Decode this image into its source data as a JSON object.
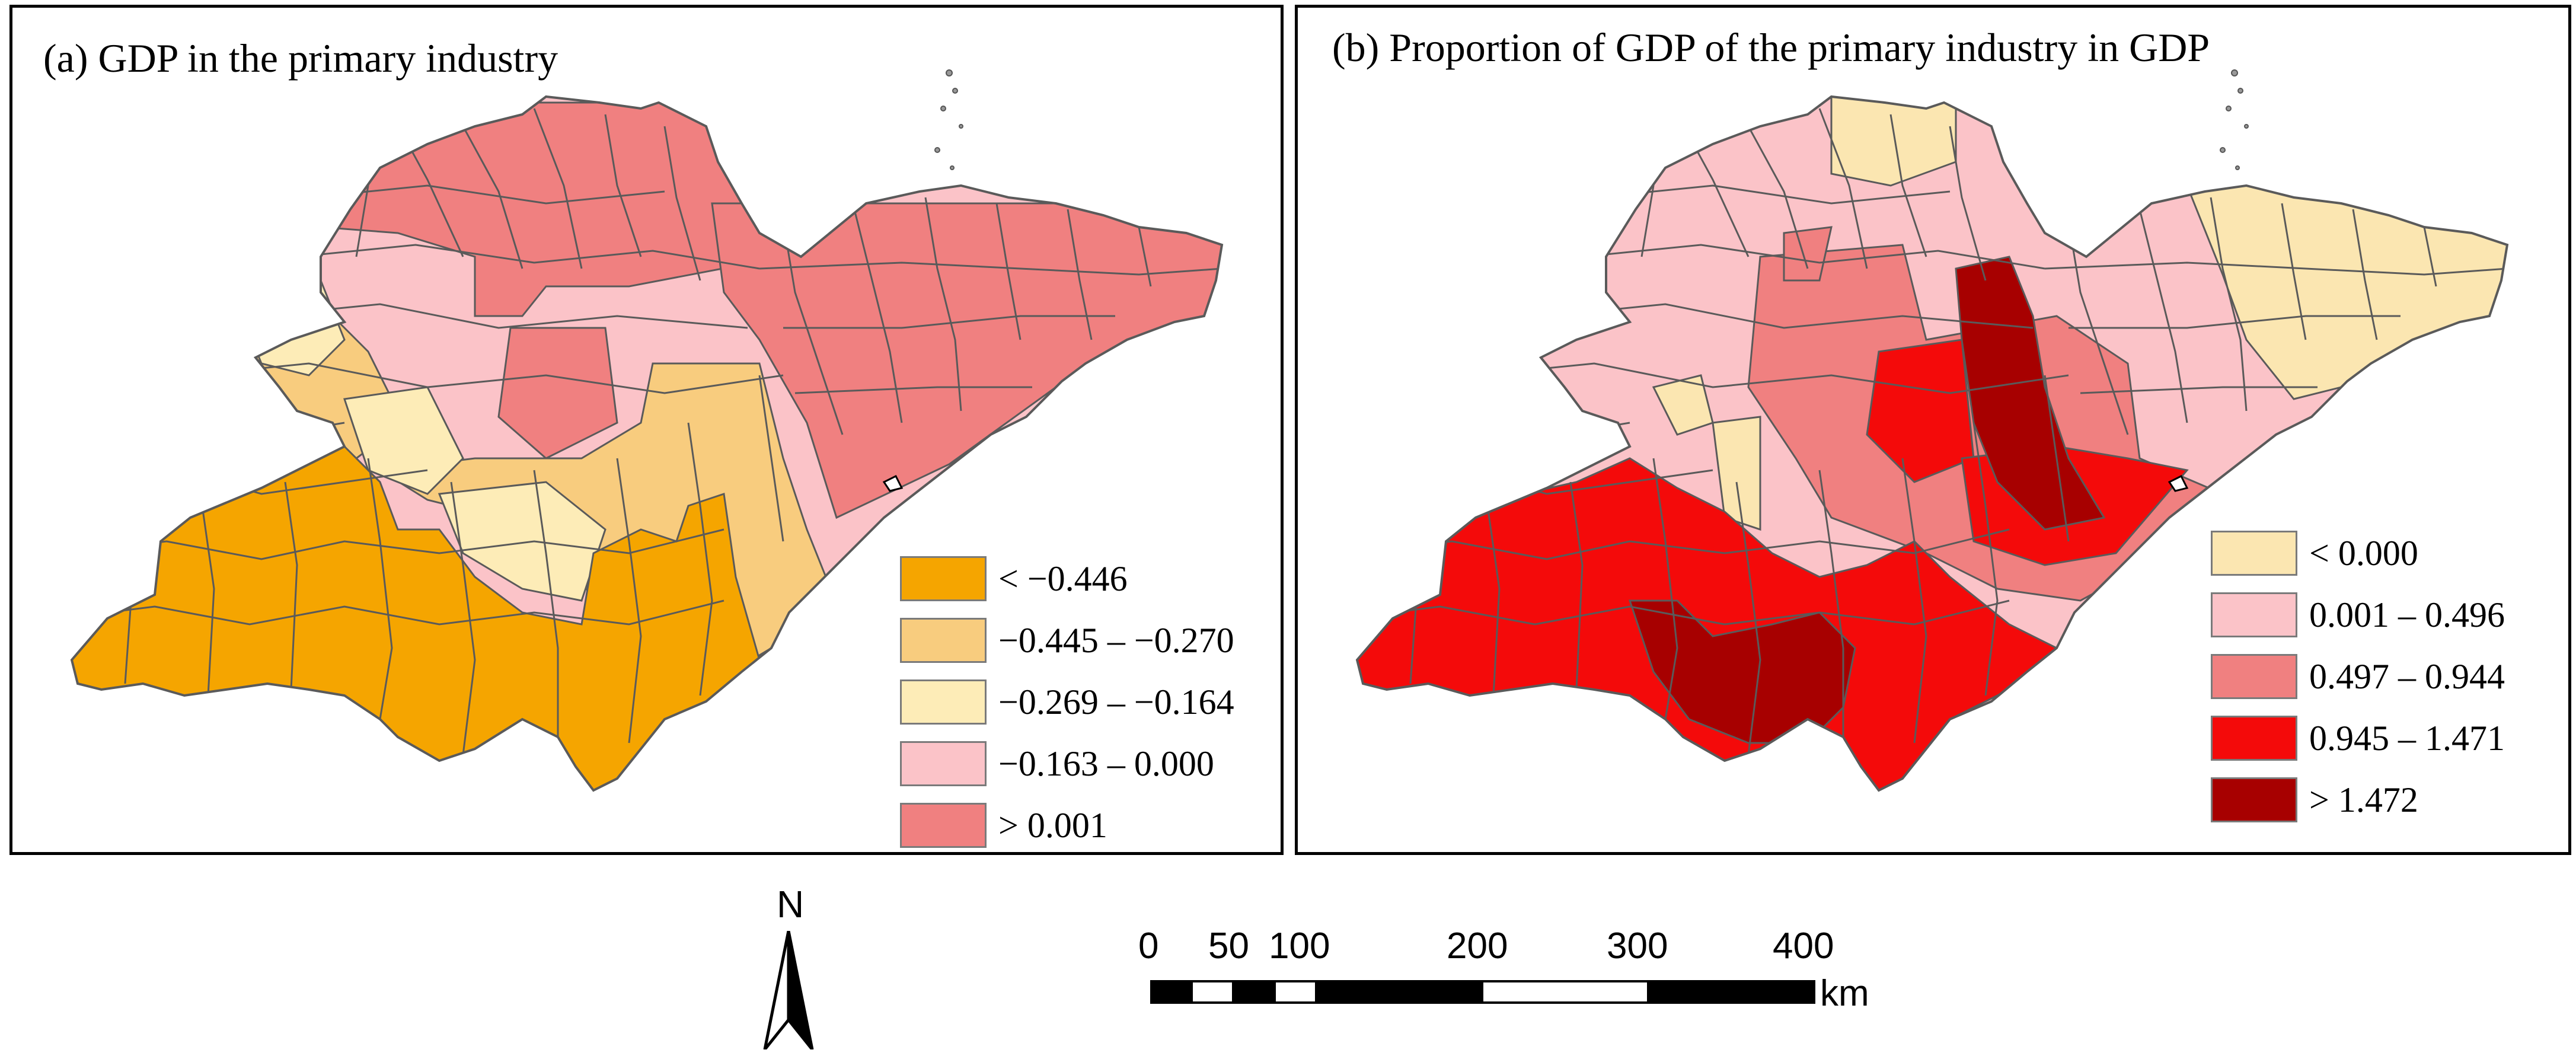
{
  "panels": [
    {
      "title": "(a) GDP in the primary industry",
      "legend": [
        {
          "label": "< −0.446",
          "color": "#f5a500"
        },
        {
          "label": "−0.445 – −0.270",
          "color": "#f8cc7e"
        },
        {
          "label": "−0.269 – −0.164",
          "color": "#fdecb7"
        },
        {
          "label": "−0.163 – 0.000",
          "color": "#fbc3c8"
        },
        {
          "label": "> 0.001",
          "color": "#f08080"
        }
      ]
    },
    {
      "title": "(b) Proportion of GDP of the primary industry in GDP",
      "legend": [
        {
          "label": "< 0.000",
          "color": "#fbe6b1"
        },
        {
          "label": "0.001 – 0.496",
          "color": "#fbc3c8"
        },
        {
          "label": "0.497 – 0.944",
          "color": "#f08080"
        },
        {
          "label": "0.945 – 1.471",
          "color": "#f40a0a"
        },
        {
          "label": "> 1.472",
          "color": "#a70000"
        }
      ]
    }
  ],
  "north_arrow": {
    "label": "N"
  },
  "scale_bar": {
    "ticks": [
      "0",
      "50",
      "100",
      "200",
      "300",
      "400"
    ],
    "unit": "km"
  }
}
